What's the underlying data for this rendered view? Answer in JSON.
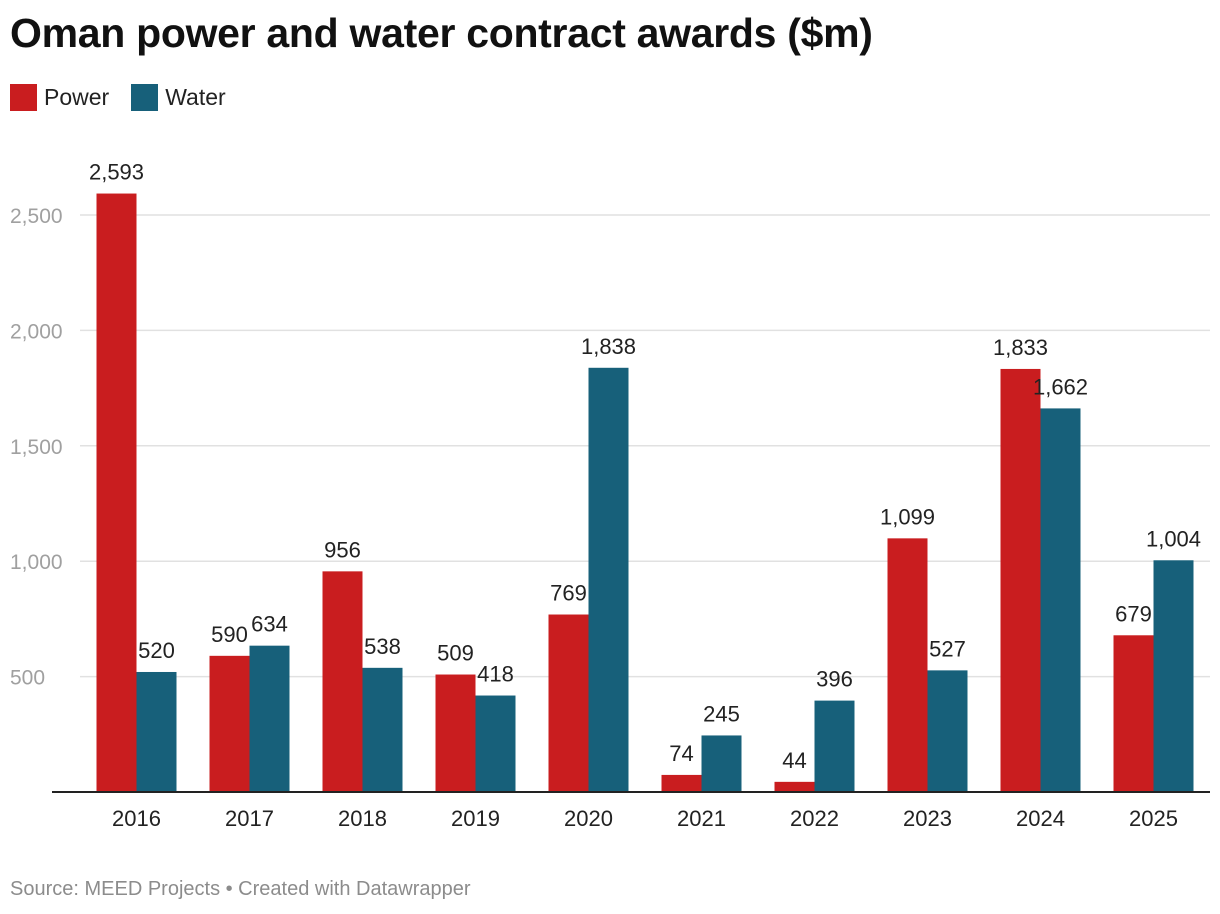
{
  "chart_data": {
    "type": "bar",
    "title": "Oman power and water contract awards ($m)",
    "categories": [
      "2016",
      "2017",
      "2018",
      "2019",
      "2020",
      "2021",
      "2022",
      "2023",
      "2024",
      "2025"
    ],
    "series": [
      {
        "name": "Power",
        "color": "#c91d1f",
        "values": [
          2593,
          590,
          956,
          509,
          769,
          74,
          44,
          1099,
          1833,
          679
        ],
        "labels": [
          "2,593",
          "590",
          "956",
          "509",
          "769",
          "74",
          "44",
          "1,099",
          "1,833",
          "679"
        ]
      },
      {
        "name": "Water",
        "color": "#17607a",
        "values": [
          520,
          634,
          538,
          418,
          1838,
          245,
          396,
          527,
          1662,
          1004
        ],
        "labels": [
          "520",
          "634",
          "538",
          "418",
          "1,838",
          "245",
          "396",
          "527",
          "1,662",
          "1,004"
        ]
      }
    ],
    "yticks": [
      500,
      1000,
      1500,
      2000,
      2500
    ],
    "ytick_labels": [
      "500",
      "1,000",
      "1,500",
      "2,000",
      "2,500"
    ],
    "ylim": [
      0,
      2500
    ],
    "xlabel": "",
    "ylabel": "",
    "grid": true,
    "legend_position": "top-left"
  },
  "footer": {
    "text": "Source: MEED Projects • Created with Datawrapper"
  }
}
